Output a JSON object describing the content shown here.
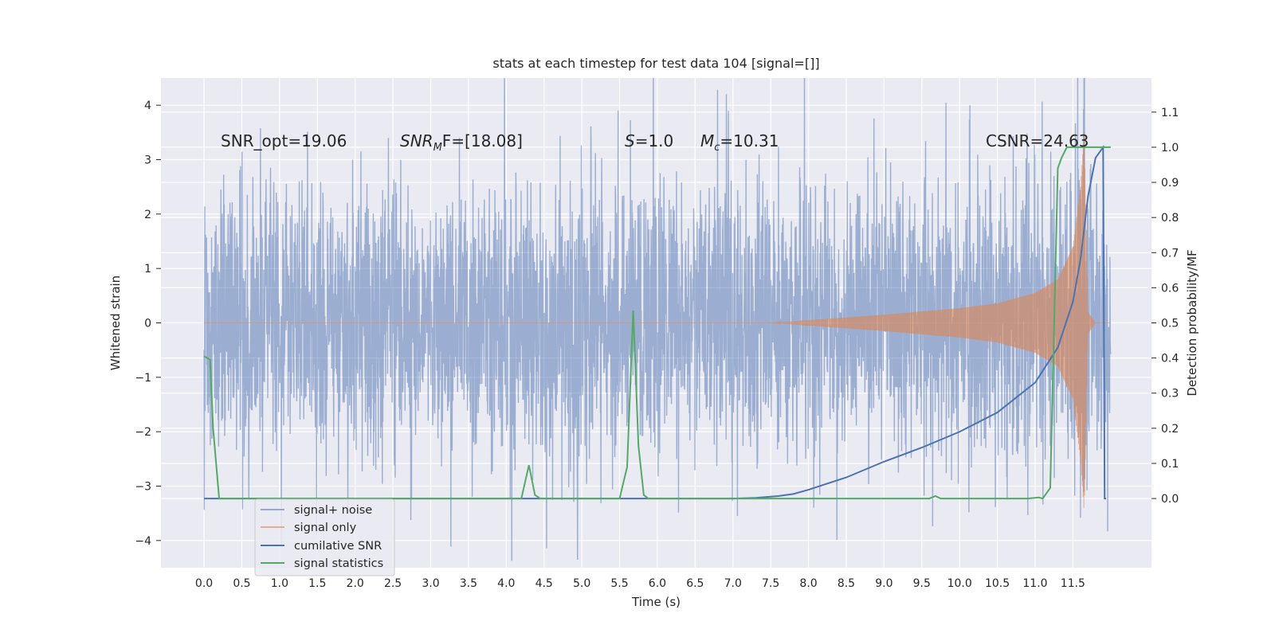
{
  "chart_data": {
    "type": "line",
    "title": "stats at each timestep for test data 104 [signal=[]]",
    "xlabel": "Time (s)",
    "ylabel": "Whitened strain",
    "y2label": "Detection probability/MF",
    "xlim": [
      -0.57,
      12.54
    ],
    "ylim": [
      -4.5,
      4.5
    ],
    "y2lim": [
      -0.197,
      1.197
    ],
    "xticks": [
      0.0,
      0.5,
      1.0,
      1.5,
      2.0,
      2.5,
      3.0,
      3.5,
      4.0,
      4.5,
      5.0,
      5.5,
      6.0,
      6.5,
      7.0,
      7.5,
      8.0,
      8.5,
      9.0,
      9.5,
      10.0,
      10.5,
      11.0,
      11.5
    ],
    "xtick_labels": [
      "0.0",
      "0.5",
      "1.0",
      "1.5",
      "2.0",
      "2.5",
      "3.0",
      "3.5",
      "4.0",
      "4.5",
      "5.0",
      "5.5",
      "6.0",
      "6.5",
      "7.0",
      "7.5",
      "8.0",
      "8.5",
      "9.0",
      "9.5",
      "10.0",
      "10.5",
      "11.0",
      "11.5"
    ],
    "yticks": [
      -4,
      -3,
      -2,
      -1,
      0,
      1,
      2,
      3,
      4
    ],
    "ytick_labels": [
      "−4",
      "−3",
      "−2",
      "−1",
      "0",
      "1",
      "2",
      "3",
      "4"
    ],
    "y2ticks": [
      0.0,
      0.1,
      0.2,
      0.3,
      0.4,
      0.5,
      0.6,
      0.7,
      0.8,
      0.9,
      1.0,
      1.1
    ],
    "y2tick_labels": [
      "0.0",
      "0.1",
      "0.2",
      "0.3",
      "0.4",
      "0.5",
      "0.6",
      "0.7",
      "0.8",
      "0.9",
      "1.0",
      "1.1"
    ],
    "grid": true,
    "legend_position": "lower-left",
    "annotations": {
      "snr_opt": "SNR_opt=19.06",
      "snr_mf_sym": "SNR",
      "snr_mf_sub": "M",
      "snr_mf_rest": "F=[18.08]",
      "s_sym": "S",
      "s_rest": "=1.0",
      "mc_sym": "M",
      "mc_sub": "c",
      "mc_rest": "=10.31",
      "csnr": "CSNR=24.63"
    },
    "series": [
      {
        "name": "signal+ noise",
        "color": "#4c72b0",
        "axis": "left",
        "t_range": [
          0.0,
          12.0
        ],
        "std": 1.3,
        "envelope_t": [
          0.0,
          7.5,
          8.0,
          9.0,
          10.0,
          10.5,
          11.0,
          11.3,
          11.5,
          11.6,
          11.65,
          11.7,
          11.8,
          12.0
        ],
        "envelope_amp": [
          0.0,
          0.0,
          0.05,
          0.15,
          0.27,
          0.36,
          0.55,
          0.8,
          1.4,
          2.5,
          3.5,
          0.2,
          0.0,
          0.0
        ]
      },
      {
        "name": "signal only",
        "color": "#dd8452",
        "axis": "left",
        "t_range": [
          0.0,
          12.0
        ],
        "envelope_t": [
          0.0,
          7.5,
          8.0,
          9.0,
          10.0,
          10.5,
          11.0,
          11.3,
          11.5,
          11.6,
          11.65,
          11.7,
          11.8,
          12.0
        ],
        "envelope_amp": [
          0.0,
          0.0,
          0.05,
          0.15,
          0.27,
          0.36,
          0.55,
          0.8,
          1.4,
          2.5,
          3.5,
          0.2,
          0.0,
          0.0
        ]
      },
      {
        "name": "cumilative SNR",
        "color": "#4c72b0",
        "axis": "right",
        "x": [
          0.0,
          6.0,
          7.0,
          7.3,
          7.6,
          7.8,
          8.0,
          8.5,
          9.0,
          9.5,
          10.0,
          10.5,
          11.0,
          11.3,
          11.5,
          11.6,
          11.65,
          11.7,
          11.8,
          11.9,
          11.92,
          11.94
        ],
        "y": [
          0.0,
          0.0,
          0.0,
          0.002,
          0.007,
          0.013,
          0.025,
          0.06,
          0.105,
          0.145,
          0.19,
          0.245,
          0.33,
          0.43,
          0.56,
          0.68,
          0.77,
          0.86,
          0.97,
          1.0,
          0.0,
          0.0
        ]
      },
      {
        "name": "signal statistics",
        "color": "#55a868",
        "axis": "right",
        "x": [
          0.0,
          0.08,
          0.12,
          0.2,
          4.2,
          4.3,
          4.38,
          4.45,
          5.5,
          5.6,
          5.68,
          5.75,
          5.82,
          5.88,
          9.6,
          9.68,
          9.75,
          10.9,
          11.05,
          11.1,
          11.2,
          11.3,
          11.35,
          11.42,
          11.9,
          11.94,
          12.0
        ],
        "y": [
          0.405,
          0.395,
          0.2,
          0.0,
          0.0,
          0.095,
          0.01,
          0.0,
          0.0,
          0.09,
          0.535,
          0.15,
          0.01,
          0.0,
          0.0,
          0.007,
          0.0,
          0.0,
          0.003,
          0.0,
          0.03,
          0.94,
          0.97,
          1.0,
          1.0,
          1.0,
          1.0
        ]
      }
    ]
  }
}
